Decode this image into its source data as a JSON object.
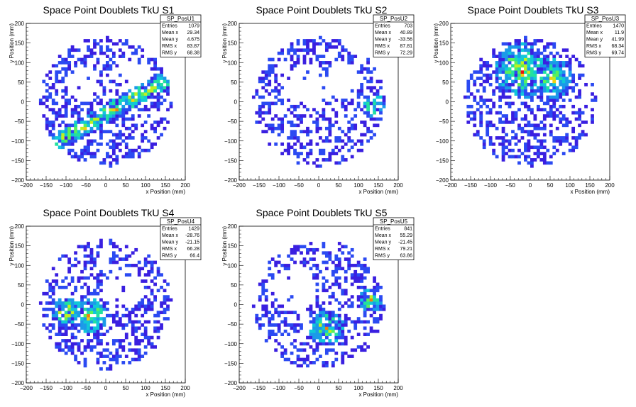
{
  "chart_data": [
    {
      "type": "heatmap",
      "title": "Space Point Doublets TkU S1",
      "xlabel": "x Position (mm)",
      "ylabel": "y Position (mm)",
      "xlim": [
        -200,
        200
      ],
      "ylim": [
        -200,
        200
      ],
      "xticks": [
        "−200",
        "−150",
        "−100",
        "−50",
        "0",
        "50",
        "100",
        "150",
        "200"
      ],
      "yticks": [
        "−200",
        "−150",
        "−100",
        "−50",
        "0",
        "50",
        "100",
        "150",
        "200"
      ],
      "hist_name": "SP_PosU1",
      "stats": [
        {
          "label": "Entries",
          "value": "1079"
        },
        {
          "label": "Mean x",
          "value": "29.34"
        },
        {
          "label": "Mean y",
          "value": "4.675"
        },
        {
          "label": "RMS x",
          "value": "83.87"
        },
        {
          "label": "RMS y",
          "value": "68.38"
        }
      ],
      "band": {
        "angle_deg": 30,
        "offset": -20,
        "center_x": 20
      },
      "voids": [
        [
          -60,
          50,
          42
        ],
        [
          70,
          80,
          40
        ]
      ]
    },
    {
      "type": "heatmap",
      "title": "Space Point Doublets TkU S2",
      "xlabel": "x Position (mm)",
      "ylabel": "y Position (mm)",
      "xlim": [
        -200,
        200
      ],
      "ylim": [
        -200,
        200
      ],
      "xticks": [
        "−200",
        "−150",
        "−100",
        "−50",
        "0",
        "50",
        "100",
        "150",
        "200"
      ],
      "yticks": [
        "−200",
        "−150",
        "−100",
        "−50",
        "0",
        "50",
        "100",
        "150",
        "200"
      ],
      "hist_name": "SP_PosU2",
      "stats": [
        {
          "label": "Entries",
          "value": "703"
        },
        {
          "label": "Mean x",
          "value": "40.89"
        },
        {
          "label": "Mean y",
          "value": "-33.56"
        },
        {
          "label": "RMS x",
          "value": "87.81"
        },
        {
          "label": "RMS y",
          "value": "72.29"
        }
      ],
      "hot": [
        [
          140,
          -10,
          30
        ]
      ],
      "voids": [
        [
          -30,
          40,
          55
        ],
        [
          60,
          50,
          45
        ]
      ]
    },
    {
      "type": "heatmap",
      "title": "Space Point Doublets TkU S3",
      "xlabel": "x Position (mm)",
      "ylabel": "y Position (mm)",
      "xlim": [
        -200,
        200
      ],
      "ylim": [
        -200,
        200
      ],
      "xticks": [
        "−200",
        "−150",
        "−100",
        "−50",
        "0",
        "50",
        "100",
        "150",
        "200"
      ],
      "yticks": [
        "−200",
        "−150",
        "−100",
        "−50",
        "0",
        "50",
        "100",
        "150",
        "200"
      ],
      "hist_name": "SP_PosU3",
      "stats": [
        {
          "label": "Entries",
          "value": "1470"
        },
        {
          "label": "Mean x",
          "value": "11.9"
        },
        {
          "label": "Mean y",
          "value": "41.99"
        },
        {
          "label": "RMS x",
          "value": "68.34"
        },
        {
          "label": "RMS y",
          "value": "69.74"
        }
      ],
      "hot": [
        [
          -20,
          80,
          70
        ],
        [
          60,
          60,
          50
        ]
      ],
      "voids": []
    },
    {
      "type": "heatmap",
      "title": "Space Point Doublets TkU S4",
      "xlabel": "x Position (mm)",
      "ylabel": "y Position (mm)",
      "xlim": [
        -200,
        200
      ],
      "ylim": [
        -200,
        200
      ],
      "xticks": [
        "−200",
        "−150",
        "−100",
        "−50",
        "0",
        "50",
        "100",
        "150",
        "200"
      ],
      "yticks": [
        "−200",
        "−150",
        "−100",
        "−50",
        "0",
        "50",
        "100",
        "150",
        "200"
      ],
      "hist_name": "SP_PosU4",
      "stats": [
        {
          "label": "Entries",
          "value": "1429"
        },
        {
          "label": "Mean x",
          "value": "-28.76"
        },
        {
          "label": "Mean y",
          "value": "-21.15"
        },
        {
          "label": "RMS x",
          "value": "66.28"
        },
        {
          "label": "RMS y",
          "value": "66.4"
        }
      ],
      "hot": [
        [
          -40,
          -30,
          45
        ],
        [
          -100,
          -20,
          40
        ]
      ],
      "voids": [
        [
          40,
          40,
          50
        ]
      ]
    },
    {
      "type": "heatmap",
      "title": "Space Point Doublets TkU S5",
      "xlabel": "x Position (mm)",
      "ylabel": "y Position (mm)",
      "xlim": [
        -200,
        200
      ],
      "ylim": [
        -200,
        200
      ],
      "xticks": [
        "−200",
        "−150",
        "−100",
        "−50",
        "0",
        "50",
        "100",
        "150",
        "200"
      ],
      "yticks": [
        "−200",
        "−150",
        "−100",
        "−50",
        "0",
        "50",
        "100",
        "150",
        "200"
      ],
      "hist_name": "SP_PosU5",
      "stats": [
        {
          "label": "Entries",
          "value": "841"
        },
        {
          "label": "Mean x",
          "value": "55.29"
        },
        {
          "label": "Mean y",
          "value": "-21.45"
        },
        {
          "label": "RMS x",
          "value": "79.21"
        },
        {
          "label": "RMS y",
          "value": "63.86"
        }
      ],
      "hot": [
        [
          130,
          10,
          30
        ],
        [
          20,
          -60,
          45
        ]
      ],
      "voids": [
        [
          -60,
          40,
          55
        ]
      ]
    }
  ]
}
